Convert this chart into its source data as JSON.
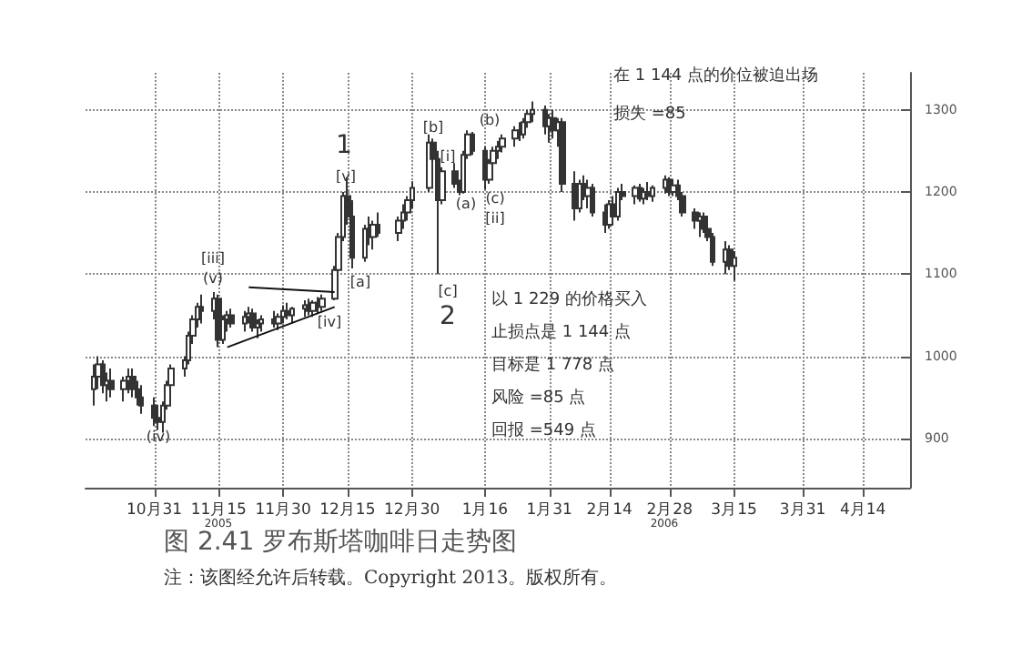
{
  "chart_data": {
    "type": "candlestick",
    "title": "图 2.41 罗布斯塔咖啡日走势图",
    "x": [
      "2005-10-17",
      "2005-10-18",
      "2005-10-19",
      "2005-10-20",
      "2005-10-21",
      "2005-10-24",
      "2005-10-25",
      "2005-10-26",
      "2005-10-27",
      "2005-10-28",
      "2005-10-31",
      "2005-11-01",
      "2005-11-02",
      "2005-11-03",
      "2005-11-04",
      "2005-11-07",
      "2005-11-08",
      "2005-11-09",
      "2005-11-10",
      "2005-11-11",
      "2005-11-14",
      "2005-11-15",
      "2005-11-16",
      "2005-11-17",
      "2005-11-18",
      "2005-11-21",
      "2005-11-22",
      "2005-11-23",
      "2005-11-24",
      "2005-11-25",
      "2005-11-28",
      "2005-11-29",
      "2005-11-30",
      "2005-12-01",
      "2005-12-02",
      "2005-12-05",
      "2005-12-06",
      "2005-12-07",
      "2005-12-08",
      "2005-12-09",
      "2005-12-12",
      "2005-12-13",
      "2005-12-14",
      "2005-12-15",
      "2005-12-16",
      "2005-12-19",
      "2005-12-20",
      "2005-12-21",
      "2005-12-22",
      "2005-12-27",
      "2005-12-28",
      "2005-12-29",
      "2005-12-30",
      "2006-01-03",
      "2006-01-04",
      "2006-01-05",
      "2006-01-06",
      "2006-01-09",
      "2006-01-10",
      "2006-01-11",
      "2006-01-12",
      "2006-01-13",
      "2006-01-16",
      "2006-01-17",
      "2006-01-18",
      "2006-01-19",
      "2006-01-20",
      "2006-01-23",
      "2006-01-24",
      "2006-01-25",
      "2006-01-26",
      "2006-01-27",
      "2006-01-30",
      "2006-01-31",
      "2006-02-01",
      "2006-02-02",
      "2006-02-03",
      "2006-02-06",
      "2006-02-07",
      "2006-02-08",
      "2006-02-09",
      "2006-02-10",
      "2006-02-13",
      "2006-02-14",
      "2006-02-15",
      "2006-02-16",
      "2006-02-17",
      "2006-02-20",
      "2006-02-21",
      "2006-02-22",
      "2006-02-23",
      "2006-02-24",
      "2006-02-27",
      "2006-02-28",
      "2006-03-01",
      "2006-03-02",
      "2006-03-03",
      "2006-03-06",
      "2006-03-07",
      "2006-03-08",
      "2006-03-09",
      "2006-03-10",
      "2006-03-13",
      "2006-03-14",
      "2006-03-15"
    ],
    "ohlc": [
      [
        960,
        990,
        940,
        975
      ],
      [
        975,
        1000,
        960,
        990
      ],
      [
        990,
        995,
        955,
        965
      ],
      [
        965,
        980,
        945,
        970
      ],
      [
        970,
        985,
        950,
        960
      ],
      [
        960,
        975,
        945,
        970
      ],
      [
        970,
        985,
        955,
        975
      ],
      [
        975,
        985,
        950,
        960
      ],
      [
        960,
        970,
        940,
        950
      ],
      [
        950,
        965,
        930,
        940
      ],
      [
        940,
        950,
        915,
        925
      ],
      [
        925,
        935,
        910,
        920
      ],
      [
        920,
        945,
        907,
        940
      ],
      [
        940,
        970,
        935,
        965
      ],
      [
        965,
        990,
        960,
        985
      ],
      [
        985,
        1000,
        975,
        995
      ],
      [
        995,
        1030,
        990,
        1025
      ],
      [
        1025,
        1050,
        1015,
        1045
      ],
      [
        1045,
        1065,
        1035,
        1060
      ],
      [
        1060,
        1075,
        1040,
        1055
      ],
      [
        1055,
        1078,
        1045,
        1070
      ],
      [
        1070,
        1075,
        1011,
        1020
      ],
      [
        1020,
        1050,
        1015,
        1045
      ],
      [
        1045,
        1055,
        1030,
        1050
      ],
      [
        1050,
        1058,
        1035,
        1040
      ],
      [
        1040,
        1055,
        1030,
        1048
      ],
      [
        1048,
        1060,
        1040,
        1052
      ],
      [
        1052,
        1058,
        1030,
        1035
      ],
      [
        1035,
        1045,
        1022,
        1040
      ],
      [
        1040,
        1050,
        1030,
        1045
      ],
      [
        1045,
        1055,
        1035,
        1040
      ],
      [
        1040,
        1052,
        1032,
        1048
      ],
      [
        1048,
        1062,
        1040,
        1055
      ],
      [
        1055,
        1065,
        1045,
        1050
      ],
      [
        1050,
        1060,
        1040,
        1058
      ],
      [
        1058,
        1068,
        1048,
        1062
      ],
      [
        1062,
        1070,
        1050,
        1055
      ],
      [
        1055,
        1068,
        1048,
        1065
      ],
      [
        1065,
        1072,
        1052,
        1060
      ],
      [
        1060,
        1075,
        1055,
        1070
      ],
      [
        1070,
        1110,
        1068,
        1105
      ],
      [
        1105,
        1150,
        1100,
        1145
      ],
      [
        1145,
        1200,
        1140,
        1195
      ],
      [
        1195,
        1218,
        1160,
        1170
      ],
      [
        1170,
        1190,
        1107,
        1120
      ],
      [
        1120,
        1160,
        1115,
        1155
      ],
      [
        1155,
        1170,
        1135,
        1145
      ],
      [
        1145,
        1165,
        1130,
        1160
      ],
      [
        1160,
        1175,
        1145,
        1150
      ],
      [
        1150,
        1170,
        1140,
        1165
      ],
      [
        1165,
        1185,
        1155,
        1175
      ],
      [
        1175,
        1195,
        1165,
        1190
      ],
      [
        1190,
        1213,
        1180,
        1205
      ],
      [
        1205,
        1270,
        1200,
        1260
      ],
      [
        1260,
        1265,
        1230,
        1240
      ],
      [
        1240,
        1250,
        1100,
        1190
      ],
      [
        1190,
        1230,
        1185,
        1225
      ],
      [
        1225,
        1235,
        1205,
        1210
      ],
      [
        1210,
        1215,
        1196,
        1200
      ],
      [
        1200,
        1250,
        1198,
        1245
      ],
      [
        1245,
        1275,
        1240,
        1270
      ],
      [
        1270,
        1273,
        1245,
        1250
      ],
      [
        1250,
        1255,
        1203,
        1215
      ],
      [
        1215,
        1240,
        1210,
        1235
      ],
      [
        1235,
        1255,
        1230,
        1250
      ],
      [
        1250,
        1262,
        1240,
        1255
      ],
      [
        1255,
        1270,
        1248,
        1265
      ],
      [
        1265,
        1280,
        1255,
        1275
      ],
      [
        1275,
        1285,
        1262,
        1270
      ],
      [
        1270,
        1290,
        1265,
        1285
      ],
      [
        1285,
        1300,
        1278,
        1295
      ],
      [
        1295,
        1310,
        1285,
        1300
      ],
      [
        1300,
        1305,
        1270,
        1280
      ],
      [
        1280,
        1295,
        1260,
        1290
      ],
      [
        1290,
        1300,
        1265,
        1275
      ],
      [
        1275,
        1290,
        1255,
        1285
      ],
      [
        1285,
        1290,
        1200,
        1210
      ],
      [
        1210,
        1225,
        1165,
        1180
      ],
      [
        1180,
        1215,
        1175,
        1210
      ],
      [
        1210,
        1220,
        1190,
        1195
      ],
      [
        1195,
        1215,
        1180,
        1205
      ],
      [
        1205,
        1210,
        1170,
        1175
      ],
      [
        1175,
        1185,
        1150,
        1160
      ],
      [
        1160,
        1190,
        1155,
        1185
      ],
      [
        1185,
        1195,
        1160,
        1170
      ],
      [
        1170,
        1205,
        1165,
        1200
      ],
      [
        1200,
        1210,
        1190,
        1195
      ],
      [
        1195,
        1208,
        1185,
        1205
      ],
      [
        1205,
        1210,
        1188,
        1192
      ],
      [
        1192,
        1205,
        1185,
        1200
      ],
      [
        1200,
        1212,
        1190,
        1195
      ],
      [
        1195,
        1208,
        1188,
        1205
      ],
      [
        1205,
        1220,
        1198,
        1215
      ],
      [
        1215,
        1218,
        1195,
        1200
      ],
      [
        1200,
        1212,
        1195,
        1208
      ],
      [
        1208,
        1215,
        1190,
        1195
      ],
      [
        1195,
        1200,
        1170,
        1175
      ],
      [
        1175,
        1180,
        1155,
        1165
      ],
      [
        1165,
        1175,
        1145,
        1170
      ],
      [
        1170,
        1175,
        1150,
        1155
      ],
      [
        1155,
        1165,
        1140,
        1145
      ],
      [
        1145,
        1150,
        1110,
        1115
      ],
      [
        1115,
        1140,
        1100,
        1130
      ],
      [
        1130,
        1135,
        1105,
        1110
      ],
      [
        1110,
        1128,
        1092,
        1120
      ]
    ],
    "color": "#333333",
    "series": [
      {
        "type": "line",
        "color": "#111111",
        "x": [
          "2005-11-22",
          "2005-12-12"
        ],
        "values": [
          1084,
          1078
        ]
      },
      {
        "type": "line",
        "color": "#111111",
        "x": [
          "2005-11-17",
          "2005-12-12"
        ],
        "values": [
          1011,
          1060
        ]
      }
    ],
    "xlim": [
      "2005-10-15",
      "2006-04-25"
    ],
    "xticks": [
      {
        "value": "2005-10-31",
        "label": "10月31"
      },
      {
        "value": "2005-11-15",
        "label": "11月15"
      },
      {
        "value": "2005-11-30",
        "label": "11月30"
      },
      {
        "value": "2005-12-15",
        "label": "12月15"
      },
      {
        "value": "2005-12-30",
        "label": "12月30"
      },
      {
        "value": "2006-01-16",
        "label": "1月16"
      },
      {
        "value": "2006-01-31",
        "label": "1月31"
      },
      {
        "value": "2006-02-14",
        "label": "2月14"
      },
      {
        "value": "2006-02-28",
        "label": "2月28"
      },
      {
        "value": "2006-03-15",
        "label": "3月15"
      },
      {
        "value": "2006-03-31",
        "label": "3月31"
      },
      {
        "value": "2006-04-14",
        "label": "4月14"
      }
    ],
    "ylim": [
      840,
      1345
    ],
    "yticks": [
      900,
      1000,
      1100,
      1200,
      1300
    ],
    "grid": true,
    "annotations": [
      "2005",
      "2006",
      "(iv)",
      "[iii]",
      "(v)",
      "[iv]",
      "1",
      "[v]",
      "[a]",
      "[b]",
      "[i]",
      "[c]",
      "2",
      "(a)",
      "(b)",
      "(c)",
      "[ii]",
      "在 1 144 点的价位被迫出场",
      "损失 =85",
      "以 1 229 的价格买入",
      "止损点是 1 144 点",
      "目标是 1 778 点",
      "风险 =85 点",
      "回报 =549 点",
      "注：该图经允许后转载。Copyright 2013。版权所有。"
    ]
  }
}
